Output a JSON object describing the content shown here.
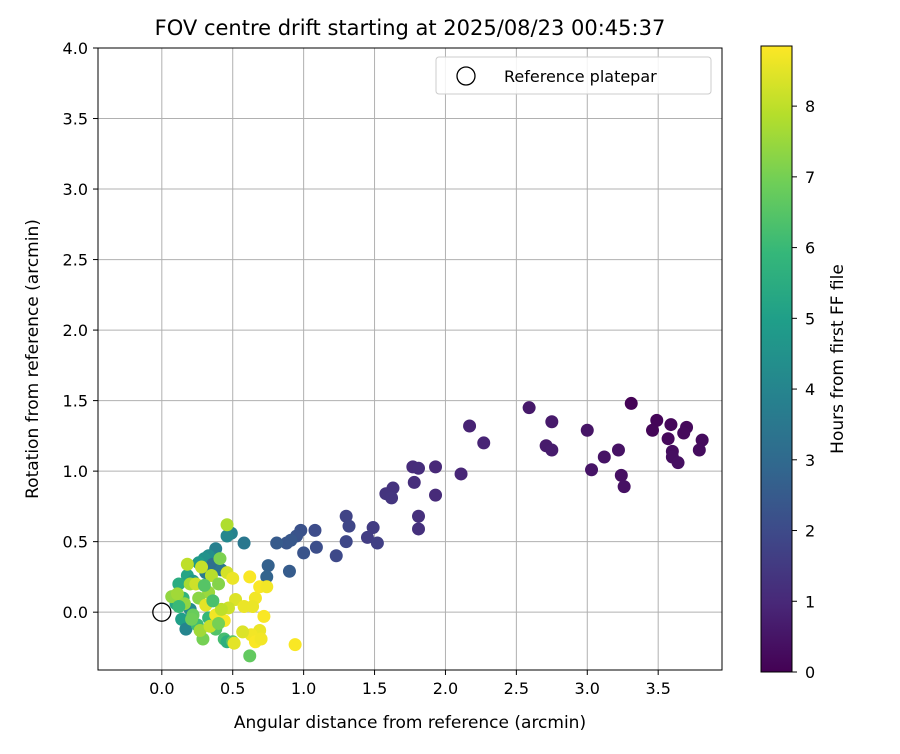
{
  "chart_data": {
    "type": "scatter",
    "title": "FOV centre drift starting at 2025/08/23 00:45:37",
    "xlabel": "Angular distance from reference (arcmin)",
    "ylabel": "Rotation from reference (arcmin)",
    "xlim": [
      -0.45,
      3.95
    ],
    "ylim": [
      -0.41,
      4.0
    ],
    "xticks": [
      0.0,
      0.5,
      1.0,
      1.5,
      2.0,
      2.5,
      3.0,
      3.5
    ],
    "xtick_labels": [
      "0.0",
      "0.5",
      "1.0",
      "1.5",
      "2.0",
      "2.5",
      "3.0",
      "3.5"
    ],
    "yticks": [
      0.0,
      0.5,
      1.0,
      1.5,
      2.0,
      2.5,
      3.0,
      3.5,
      4.0
    ],
    "ytick_labels": [
      "0.0",
      "0.5",
      "1.0",
      "1.5",
      "2.0",
      "2.5",
      "3.0",
      "3.5",
      "4.0"
    ],
    "grid": true,
    "legend": {
      "placement": "upper right",
      "entries": [
        {
          "label": "Reference platepar",
          "marker": "open-circle"
        }
      ]
    },
    "reference_point": {
      "x": 0.0,
      "y": 0.0
    },
    "colorbar": {
      "label": "Hours from first FF file",
      "colormap": "viridis",
      "range": [
        0,
        8.85
      ],
      "ticks": [
        0,
        1,
        2,
        3,
        4,
        5,
        6,
        7,
        8
      ],
      "tick_labels": [
        "0",
        "1",
        "2",
        "3",
        "4",
        "5",
        "6",
        "7",
        "8"
      ]
    },
    "series": [
      {
        "color_value_field": "hours",
        "points": [
          {
            "x": 3.31,
            "y": 1.48,
            "hours": 0.05
          },
          {
            "x": 3.49,
            "y": 1.36,
            "hours": 0.1
          },
          {
            "x": 3.46,
            "y": 1.29,
            "hours": 0.12
          },
          {
            "x": 3.59,
            "y": 1.33,
            "hours": 0.15
          },
          {
            "x": 3.57,
            "y": 1.23,
            "hours": 0.18
          },
          {
            "x": 3.7,
            "y": 1.31,
            "hours": 0.2
          },
          {
            "x": 3.68,
            "y": 1.27,
            "hours": 0.22
          },
          {
            "x": 3.81,
            "y": 1.22,
            "hours": 0.25
          },
          {
            "x": 3.79,
            "y": 1.15,
            "hours": 0.27
          },
          {
            "x": 3.6,
            "y": 1.14,
            "hours": 0.3
          },
          {
            "x": 3.6,
            "y": 1.1,
            "hours": 0.32
          },
          {
            "x": 3.64,
            "y": 1.06,
            "hours": 0.35
          },
          {
            "x": 3.24,
            "y": 0.97,
            "hours": 0.38
          },
          {
            "x": 3.26,
            "y": 0.89,
            "hours": 0.4
          },
          {
            "x": 3.22,
            "y": 1.15,
            "hours": 0.42
          },
          {
            "x": 3.12,
            "y": 1.1,
            "hours": 0.45
          },
          {
            "x": 3.03,
            "y": 1.01,
            "hours": 0.48
          },
          {
            "x": 3.0,
            "y": 1.29,
            "hours": 0.5
          },
          {
            "x": 2.59,
            "y": 1.45,
            "hours": 0.6
          },
          {
            "x": 2.75,
            "y": 1.35,
            "hours": 0.62
          },
          {
            "x": 2.71,
            "y": 1.18,
            "hours": 0.65
          },
          {
            "x": 2.75,
            "y": 1.15,
            "hours": 0.68
          },
          {
            "x": 2.17,
            "y": 1.32,
            "hours": 0.85
          },
          {
            "x": 2.27,
            "y": 1.2,
            "hours": 0.88
          },
          {
            "x": 2.11,
            "y": 0.98,
            "hours": 0.95
          },
          {
            "x": 1.93,
            "y": 1.03,
            "hours": 1.0
          },
          {
            "x": 1.93,
            "y": 0.83,
            "hours": 1.05
          },
          {
            "x": 1.77,
            "y": 1.03,
            "hours": 1.1
          },
          {
            "x": 1.81,
            "y": 1.02,
            "hours": 1.12
          },
          {
            "x": 1.78,
            "y": 0.92,
            "hours": 1.15
          },
          {
            "x": 1.81,
            "y": 0.68,
            "hours": 1.2
          },
          {
            "x": 1.81,
            "y": 0.59,
            "hours": 1.22
          },
          {
            "x": 1.63,
            "y": 0.88,
            "hours": 1.3
          },
          {
            "x": 1.58,
            "y": 0.84,
            "hours": 1.32
          },
          {
            "x": 1.62,
            "y": 0.81,
            "hours": 1.35
          },
          {
            "x": 1.49,
            "y": 0.6,
            "hours": 1.55
          },
          {
            "x": 1.45,
            "y": 0.53,
            "hours": 1.6
          },
          {
            "x": 1.52,
            "y": 0.49,
            "hours": 1.65
          },
          {
            "x": 1.3,
            "y": 0.68,
            "hours": 1.8
          },
          {
            "x": 1.32,
            "y": 0.61,
            "hours": 1.85
          },
          {
            "x": 1.3,
            "y": 0.5,
            "hours": 1.9
          },
          {
            "x": 1.23,
            "y": 0.4,
            "hours": 1.95
          },
          {
            "x": 1.08,
            "y": 0.58,
            "hours": 2.05
          },
          {
            "x": 1.09,
            "y": 0.46,
            "hours": 2.1
          },
          {
            "x": 0.98,
            "y": 0.58,
            "hours": 2.2
          },
          {
            "x": 0.95,
            "y": 0.54,
            "hours": 2.25
          },
          {
            "x": 1.0,
            "y": 0.42,
            "hours": 2.28
          },
          {
            "x": 0.88,
            "y": 0.49,
            "hours": 2.35
          },
          {
            "x": 0.91,
            "y": 0.51,
            "hours": 2.4
          },
          {
            "x": 0.81,
            "y": 0.49,
            "hours": 2.5
          },
          {
            "x": 0.9,
            "y": 0.29,
            "hours": 2.55
          },
          {
            "x": 0.75,
            "y": 0.33,
            "hours": 2.7
          },
          {
            "x": 0.74,
            "y": 0.25,
            "hours": 2.8
          },
          {
            "x": 0.58,
            "y": 0.49,
            "hours": 3.5
          },
          {
            "x": 0.49,
            "y": 0.56,
            "hours": 3.9
          },
          {
            "x": 0.46,
            "y": 0.54,
            "hours": 4.1
          },
          {
            "x": 0.38,
            "y": 0.45,
            "hours": 3.8
          },
          {
            "x": 0.33,
            "y": 0.4,
            "hours": 4.3
          },
          {
            "x": 0.3,
            "y": 0.38,
            "hours": 4.5
          },
          {
            "x": 0.26,
            "y": 0.35,
            "hours": 4.8
          },
          {
            "x": 0.36,
            "y": 0.34,
            "hours": 3.2
          },
          {
            "x": 0.42,
            "y": 0.3,
            "hours": 3.4
          },
          {
            "x": 0.31,
            "y": 0.28,
            "hours": 3.6
          },
          {
            "x": 0.18,
            "y": 0.26,
            "hours": 5.2
          },
          {
            "x": 0.22,
            "y": 0.22,
            "hours": 4.7
          },
          {
            "x": 0.12,
            "y": 0.2,
            "hours": 5.5
          },
          {
            "x": 0.15,
            "y": 0.1,
            "hours": 5.8
          },
          {
            "x": 0.1,
            "y": 0.06,
            "hours": 5.3
          },
          {
            "x": 0.2,
            "y": 0.02,
            "hours": 4.2
          },
          {
            "x": 0.14,
            "y": -0.05,
            "hours": 5.0
          },
          {
            "x": 0.17,
            "y": -0.12,
            "hours": 4.0
          },
          {
            "x": 0.25,
            "y": -0.09,
            "hours": 6.1
          },
          {
            "x": 0.33,
            "y": -0.04,
            "hours": 5.9
          },
          {
            "x": 0.38,
            "y": -0.12,
            "hours": 6.4
          },
          {
            "x": 0.44,
            "y": -0.19,
            "hours": 6.2
          },
          {
            "x": 0.46,
            "y": -0.21,
            "hours": 5.6
          },
          {
            "x": 0.5,
            "y": -0.21,
            "hours": 6.6
          },
          {
            "x": 0.62,
            "y": -0.31,
            "hours": 6.7
          },
          {
            "x": 0.29,
            "y": -0.19,
            "hours": 7.0
          },
          {
            "x": 0.22,
            "y": -0.02,
            "hours": 6.8
          },
          {
            "x": 0.07,
            "y": 0.11,
            "hours": 7.4
          },
          {
            "x": 0.11,
            "y": 0.13,
            "hours": 7.6
          },
          {
            "x": 0.2,
            "y": 0.2,
            "hours": 7.7
          },
          {
            "x": 0.18,
            "y": 0.34,
            "hours": 8.0
          },
          {
            "x": 0.28,
            "y": 0.32,
            "hours": 8.1
          },
          {
            "x": 0.35,
            "y": 0.26,
            "hours": 7.9
          },
          {
            "x": 0.4,
            "y": 0.2,
            "hours": 7.2
          },
          {
            "x": 0.46,
            "y": 0.62,
            "hours": 7.8
          },
          {
            "x": 0.41,
            "y": 0.38,
            "hours": 7.1
          },
          {
            "x": 0.46,
            "y": 0.28,
            "hours": 8.3
          },
          {
            "x": 0.5,
            "y": 0.24,
            "hours": 8.6
          },
          {
            "x": 0.52,
            "y": 0.09,
            "hours": 8.4
          },
          {
            "x": 0.47,
            "y": 0.03,
            "hours": 8.2
          },
          {
            "x": 0.33,
            "y": 0.14,
            "hours": 7.5
          },
          {
            "x": 0.26,
            "y": 0.1,
            "hours": 7.3
          },
          {
            "x": 0.31,
            "y": 0.05,
            "hours": 8.5
          },
          {
            "x": 0.38,
            "y": -0.02,
            "hours": 8.7
          },
          {
            "x": 0.44,
            "y": -0.06,
            "hours": 8.8
          },
          {
            "x": 0.27,
            "y": -0.13,
            "hours": 7.6
          },
          {
            "x": 0.34,
            "y": -0.1,
            "hours": 8.1
          },
          {
            "x": 0.51,
            "y": -0.22,
            "hours": 8.5
          },
          {
            "x": 0.58,
            "y": 0.04,
            "hours": 8.6
          },
          {
            "x": 0.62,
            "y": 0.25,
            "hours": 8.8
          },
          {
            "x": 0.66,
            "y": 0.1,
            "hours": 8.7
          },
          {
            "x": 0.64,
            "y": 0.04,
            "hours": 8.6
          },
          {
            "x": 0.69,
            "y": 0.18,
            "hours": 8.8
          },
          {
            "x": 0.74,
            "y": 0.18,
            "hours": 8.7
          },
          {
            "x": 0.72,
            "y": -0.03,
            "hours": 8.8
          },
          {
            "x": 0.69,
            "y": -0.13,
            "hours": 8.6
          },
          {
            "x": 0.63,
            "y": -0.16,
            "hours": 8.7
          },
          {
            "x": 0.66,
            "y": -0.21,
            "hours": 8.8
          },
          {
            "x": 0.7,
            "y": -0.19,
            "hours": 8.7
          },
          {
            "x": 0.94,
            "y": -0.23,
            "hours": 8.8
          },
          {
            "x": 0.57,
            "y": -0.14,
            "hours": 8.4
          },
          {
            "x": 0.42,
            "y": 0.02,
            "hours": 8.0
          },
          {
            "x": 0.24,
            "y": 0.2,
            "hours": 8.2
          },
          {
            "x": 0.16,
            "y": 0.06,
            "hours": 7.4
          },
          {
            "x": 0.21,
            "y": -0.05,
            "hours": 6.9
          },
          {
            "x": 0.3,
            "y": 0.19,
            "hours": 6.5
          },
          {
            "x": 0.36,
            "y": 0.08,
            "hours": 6.3
          },
          {
            "x": 0.4,
            "y": -0.08,
            "hours": 7.0
          },
          {
            "x": 0.12,
            "y": 0.04,
            "hours": 6.0
          }
        ]
      }
    ]
  }
}
